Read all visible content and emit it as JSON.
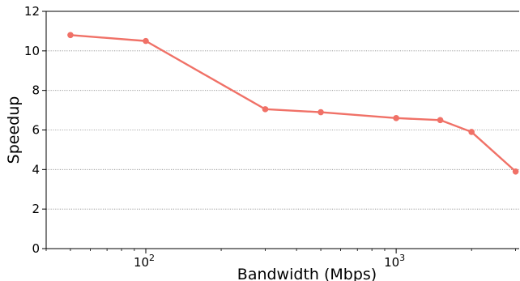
{
  "chart_data": {
    "type": "line",
    "xlabel": "Bandwidth (Mbps)",
    "ylabel": "Speedup",
    "x_scale": "log",
    "xlim": [
      40,
      3100
    ],
    "ylim": [
      0,
      12
    ],
    "y_ticks": [
      0,
      2,
      4,
      6,
      8,
      10,
      12
    ],
    "x_major_ticks": [
      {
        "value": 100,
        "base": "10",
        "exp": "2"
      },
      {
        "value": 1000,
        "base": "10",
        "exp": "3"
      }
    ],
    "grid": "horizontal dotted",
    "legend": "none",
    "series": [
      {
        "color": "#F07167",
        "x": [
          50,
          100,
          300,
          500,
          1000,
          1500,
          2000,
          3000
        ],
        "y": [
          10.8,
          10.5,
          7.05,
          6.9,
          6.6,
          6.5,
          5.9,
          3.9
        ]
      }
    ]
  }
}
